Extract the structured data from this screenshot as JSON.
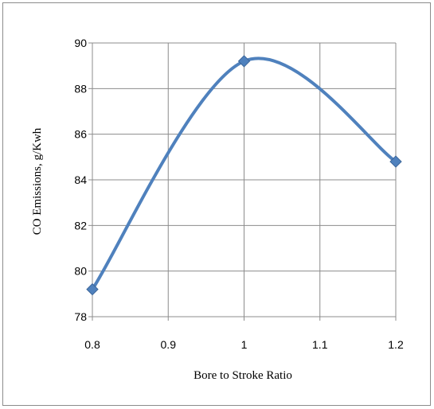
{
  "chart_data": {
    "type": "line",
    "title": "",
    "xlabel": "Bore to Stroke Ratio",
    "ylabel": "CO Emissions, g/Kwh",
    "x_ticks": [
      "0.8",
      "0.9",
      "1",
      "1.1",
      "1.2"
    ],
    "y_ticks": [
      "78",
      "80",
      "82",
      "84",
      "86",
      "88",
      "90"
    ],
    "xlim": [
      0.8,
      1.2
    ],
    "ylim": [
      78,
      90
    ],
    "grid": true,
    "legend": "none",
    "series": [
      {
        "x": [
          0.8,
          1.0,
          1.2
        ],
        "y": [
          79.2,
          89.2,
          84.8
        ],
        "line_color": "#4f81bd",
        "marker": "diamond",
        "smooth": true
      }
    ]
  }
}
